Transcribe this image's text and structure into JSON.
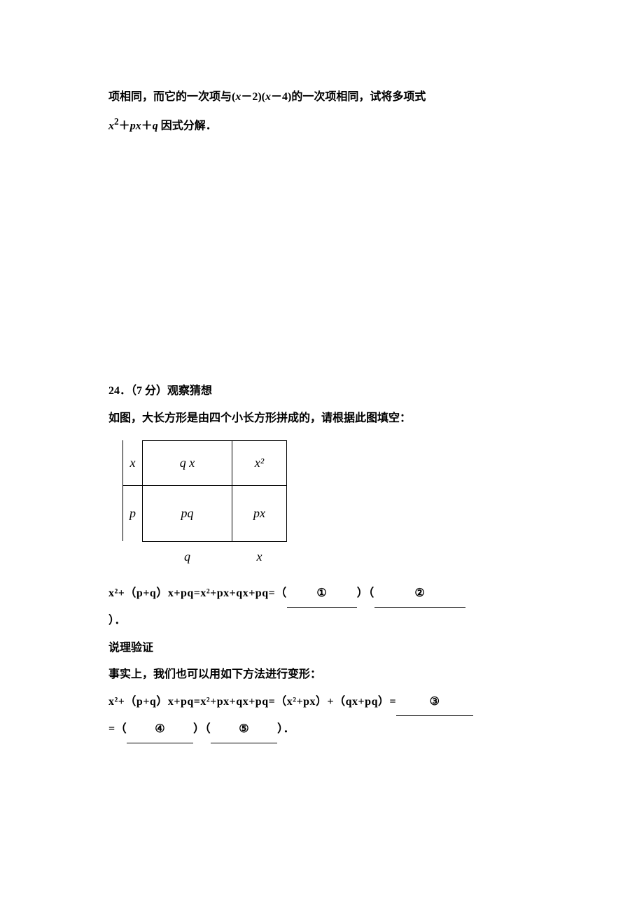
{
  "q23": {
    "line1_pre": "项相同，而它的一次项与",
    "expr1_a": "(",
    "expr1_x1": "x",
    "expr1_mid1": "－2)(",
    "expr1_x2": "x",
    "expr1_mid2": "－4)",
    "line1_post": "的一次项相同，试将多项式",
    "expr2_x": "x",
    "expr2_sup": "2",
    "expr2_plus1": "＋",
    "expr2_p": "p",
    "expr2_x2": "x",
    "expr2_plus2": "＋",
    "expr2_q": "q",
    "line2_post": " 因式分解．"
  },
  "q24": {
    "header": "24．（7 分）观察猜想",
    "intro": "如图，大长方形是由四个小长方形拼成的，请根据此图填空：",
    "diagram": {
      "left_top": "x",
      "left_bot": "p",
      "bot_a": "q",
      "bot_b": "x",
      "cell_tl": "q x",
      "cell_tr": "x²",
      "cell_bl": "pq",
      "cell_br": "px",
      "col_a_width": 128,
      "col_b_width": 78,
      "row_top_height": 64,
      "row_bot_height": 80,
      "border_color": "#000000"
    },
    "eq1_pre": "x²+（p+q）x+pq=x²+px+qx+pq=（",
    "blank1": "①",
    "eq1_mid": "）（",
    "blank2": "②",
    "eq1_end": "）．",
    "eq1_closeparen_line": "",
    "verify_heading": "说理验证",
    "verify_line": "事实上，我们也可以用如下方法进行变形：",
    "eq2_pre": "x²+（p+q）x+pq=x²+px+qx+pq=（x²+px）+（qx+pq）=",
    "blank3": "③",
    "eq3_pre": "=（",
    "blank4": "④",
    "eq3_mid": "）（",
    "blank5": "⑤",
    "eq3_end": "）．"
  }
}
